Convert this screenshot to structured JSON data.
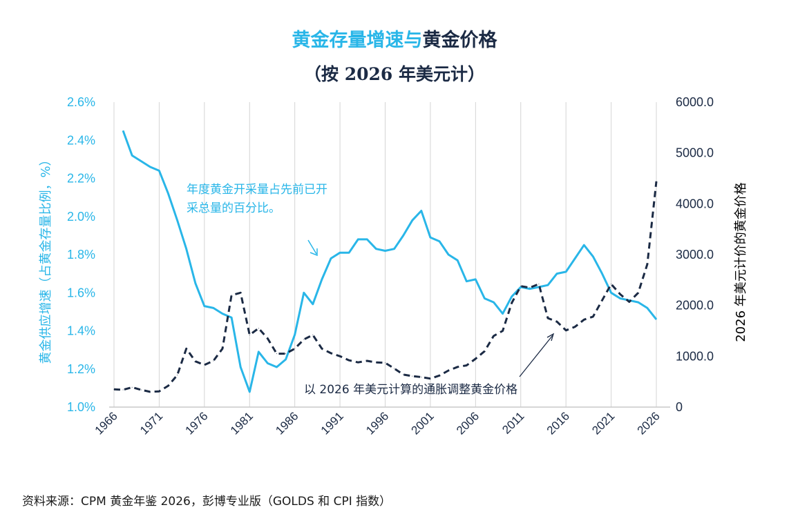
{
  "title_part1": "黄金存量增速与",
  "title_part2": "黄金价格",
  "subtitle": "（按 2026 年美元计）",
  "source": "资料来源：CPM 黄金年鉴 2026，彭博专业版（GOLDS 和 CPI 指数）",
  "colors": {
    "supply": "#29b6e8",
    "price": "#1b2a44"
  },
  "chart_data": {
    "type": "line",
    "xlabel": "",
    "ylabel_left": "黄金供应增速（占黄金存量比例，%）",
    "ylabel_right": "2026 年美元计价的黄金价格",
    "x_ticks": [
      "1966",
      "1971",
      "1976",
      "1981",
      "1986",
      "1991",
      "1996",
      "2001",
      "2006",
      "2011",
      "2016",
      "2021",
      "2026"
    ],
    "y_left_ticks": [
      "1.0%",
      "1.2%",
      "1.4%",
      "1.6%",
      "1.8%",
      "2.0%",
      "2.2%",
      "2.4%",
      "2.6%"
    ],
    "y_right_ticks": [
      "0",
      "1000.0",
      "2000.0",
      "3000.0",
      "4000.0",
      "5000.0",
      "6000.0"
    ],
    "ylim_left": [
      1.0,
      2.6
    ],
    "ylim_right": [
      0,
      6000
    ],
    "xlim": [
      1966,
      2026
    ],
    "grid": "vertical",
    "annotations": {
      "supply_line1": "年度黄金开采量占先前已开",
      "supply_line2": "采总量的百分比。",
      "price": "以 2026 年美元计算的通胀调整黄金价格"
    },
    "series": [
      {
        "name": "黄金供应增速",
        "axis": "left",
        "style": "solid",
        "x": [
          1967,
          1968,
          1969,
          1970,
          1971,
          1972,
          1973,
          1974,
          1975,
          1976,
          1977,
          1978,
          1979,
          1980,
          1981,
          1982,
          1983,
          1984,
          1985,
          1986,
          1987,
          1988,
          1989,
          1990,
          1991,
          1992,
          1993,
          1994,
          1995,
          1996,
          1997,
          1998,
          1999,
          2000,
          2001,
          2002,
          2003,
          2004,
          2005,
          2006,
          2007,
          2008,
          2009,
          2010,
          2011,
          2012,
          2013,
          2014,
          2015,
          2016,
          2017,
          2018,
          2019,
          2020,
          2021,
          2022,
          2023,
          2024,
          2025,
          2026
        ],
        "values": [
          2.45,
          2.32,
          2.29,
          2.26,
          2.24,
          2.12,
          1.98,
          1.83,
          1.65,
          1.53,
          1.52,
          1.49,
          1.47,
          1.21,
          1.08,
          1.29,
          1.23,
          1.21,
          1.25,
          1.38,
          1.6,
          1.54,
          1.67,
          1.78,
          1.81,
          1.81,
          1.88,
          1.88,
          1.83,
          1.82,
          1.83,
          1.9,
          1.98,
          2.03,
          1.89,
          1.87,
          1.8,
          1.77,
          1.66,
          1.67,
          1.57,
          1.55,
          1.49,
          1.58,
          1.63,
          1.62,
          1.63,
          1.64,
          1.7,
          1.71,
          1.78,
          1.85,
          1.79,
          1.7,
          1.6,
          1.57,
          1.56,
          1.55,
          1.52,
          1.46
        ]
      },
      {
        "name": "黄金价格",
        "axis": "right",
        "style": "dashed",
        "x": [
          1966,
          1967,
          1968,
          1969,
          1970,
          1971,
          1972,
          1973,
          1974,
          1975,
          1976,
          1977,
          1978,
          1979,
          1980,
          1981,
          1982,
          1983,
          1984,
          1985,
          1986,
          1987,
          1988,
          1989,
          1990,
          1991,
          1992,
          1993,
          1994,
          1995,
          1996,
          1997,
          1998,
          1999,
          2000,
          2001,
          2002,
          2003,
          2004,
          2005,
          2006,
          2007,
          2008,
          2009,
          2010,
          2011,
          2012,
          2013,
          2014,
          2015,
          2016,
          2017,
          2018,
          2019,
          2020,
          2021,
          2022,
          2023,
          2024,
          2025,
          2026
        ],
        "values": [
          350,
          340,
          390,
          340,
          300,
          310,
          420,
          630,
          1150,
          900,
          830,
          910,
          1150,
          2200,
          2250,
          1420,
          1550,
          1350,
          1050,
          1050,
          1150,
          1330,
          1420,
          1150,
          1060,
          1000,
          920,
          880,
          910,
          880,
          870,
          760,
          640,
          610,
          590,
          560,
          620,
          720,
          790,
          820,
          950,
          1100,
          1400,
          1500,
          2050,
          2380,
          2350,
          2420,
          1750,
          1680,
          1510,
          1580,
          1720,
          1780,
          2100,
          2420,
          2220,
          2070,
          2250,
          2810,
          4440
        ]
      }
    ]
  }
}
